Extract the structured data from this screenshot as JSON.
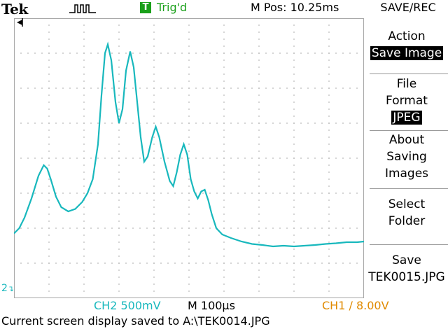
{
  "header": {
    "brand": "Tek",
    "acquisition_icon": "acquire-run-icon",
    "trigger_badge": "T",
    "trigger_status": "Trig'd",
    "m_pos": "M Pos: 10.25ms",
    "menu_title": "SAVE/REC"
  },
  "side_menu": {
    "action_label": "Action",
    "action_value": "Save Image",
    "format_label_1": "File",
    "format_label_2": "Format",
    "format_value": "JPEG",
    "about_1": "About",
    "about_2": "Saving",
    "about_3": "Images",
    "select_1": "Select",
    "select_2": "Folder",
    "save_1": "Save",
    "save_file": "TEK0015.JPG"
  },
  "status": {
    "ch2_scale": "CH2  500mV",
    "timebase": "M 100µs",
    "trigger_readout": "CH1 ∕ 8.00V",
    "message": "Current screen display saved to A:\\TEK0014.JPG"
  },
  "channel_marker": "2",
  "colors": {
    "trace": "#18b8bd",
    "trigger_green": "#1aa01a",
    "ch1_orange": "#e08a00"
  },
  "waveform": {
    "description_units": "divisions (x: 0-10 time, y: 0-8 amplitude, 0 at bottom)",
    "points": [
      [
        0.0,
        1.85
      ],
      [
        0.15,
        2.0
      ],
      [
        0.3,
        2.3
      ],
      [
        0.5,
        2.85
      ],
      [
        0.7,
        3.5
      ],
      [
        0.85,
        3.8
      ],
      [
        0.95,
        3.7
      ],
      [
        1.05,
        3.4
      ],
      [
        1.2,
        2.9
      ],
      [
        1.35,
        2.6
      ],
      [
        1.55,
        2.48
      ],
      [
        1.75,
        2.55
      ],
      [
        1.95,
        2.75
      ],
      [
        2.1,
        3.0
      ],
      [
        2.25,
        3.4
      ],
      [
        2.4,
        4.4
      ],
      [
        2.5,
        5.8
      ],
      [
        2.6,
        7.0
      ],
      [
        2.68,
        7.25
      ],
      [
        2.78,
        6.8
      ],
      [
        2.9,
        5.6
      ],
      [
        3.0,
        5.0
      ],
      [
        3.1,
        5.4
      ],
      [
        3.2,
        6.5
      ],
      [
        3.32,
        7.05
      ],
      [
        3.42,
        6.6
      ],
      [
        3.52,
        5.6
      ],
      [
        3.62,
        4.6
      ],
      [
        3.72,
        3.9
      ],
      [
        3.82,
        4.05
      ],
      [
        3.95,
        4.6
      ],
      [
        4.05,
        4.9
      ],
      [
        4.15,
        4.6
      ],
      [
        4.3,
        3.9
      ],
      [
        4.45,
        3.35
      ],
      [
        4.55,
        3.2
      ],
      [
        4.65,
        3.6
      ],
      [
        4.75,
        4.1
      ],
      [
        4.85,
        4.4
      ],
      [
        4.95,
        4.1
      ],
      [
        5.05,
        3.4
      ],
      [
        5.15,
        3.05
      ],
      [
        5.25,
        2.85
      ],
      [
        5.35,
        3.05
      ],
      [
        5.45,
        3.1
      ],
      [
        5.55,
        2.8
      ],
      [
        5.65,
        2.4
      ],
      [
        5.78,
        2.0
      ],
      [
        5.95,
        1.82
      ],
      [
        6.2,
        1.72
      ],
      [
        6.5,
        1.62
      ],
      [
        6.8,
        1.55
      ],
      [
        7.1,
        1.52
      ],
      [
        7.4,
        1.48
      ],
      [
        7.7,
        1.5
      ],
      [
        8.0,
        1.48
      ],
      [
        8.3,
        1.5
      ],
      [
        8.6,
        1.52
      ],
      [
        8.9,
        1.55
      ],
      [
        9.2,
        1.57
      ],
      [
        9.5,
        1.6
      ],
      [
        9.8,
        1.6
      ],
      [
        10.0,
        1.62
      ]
    ]
  }
}
